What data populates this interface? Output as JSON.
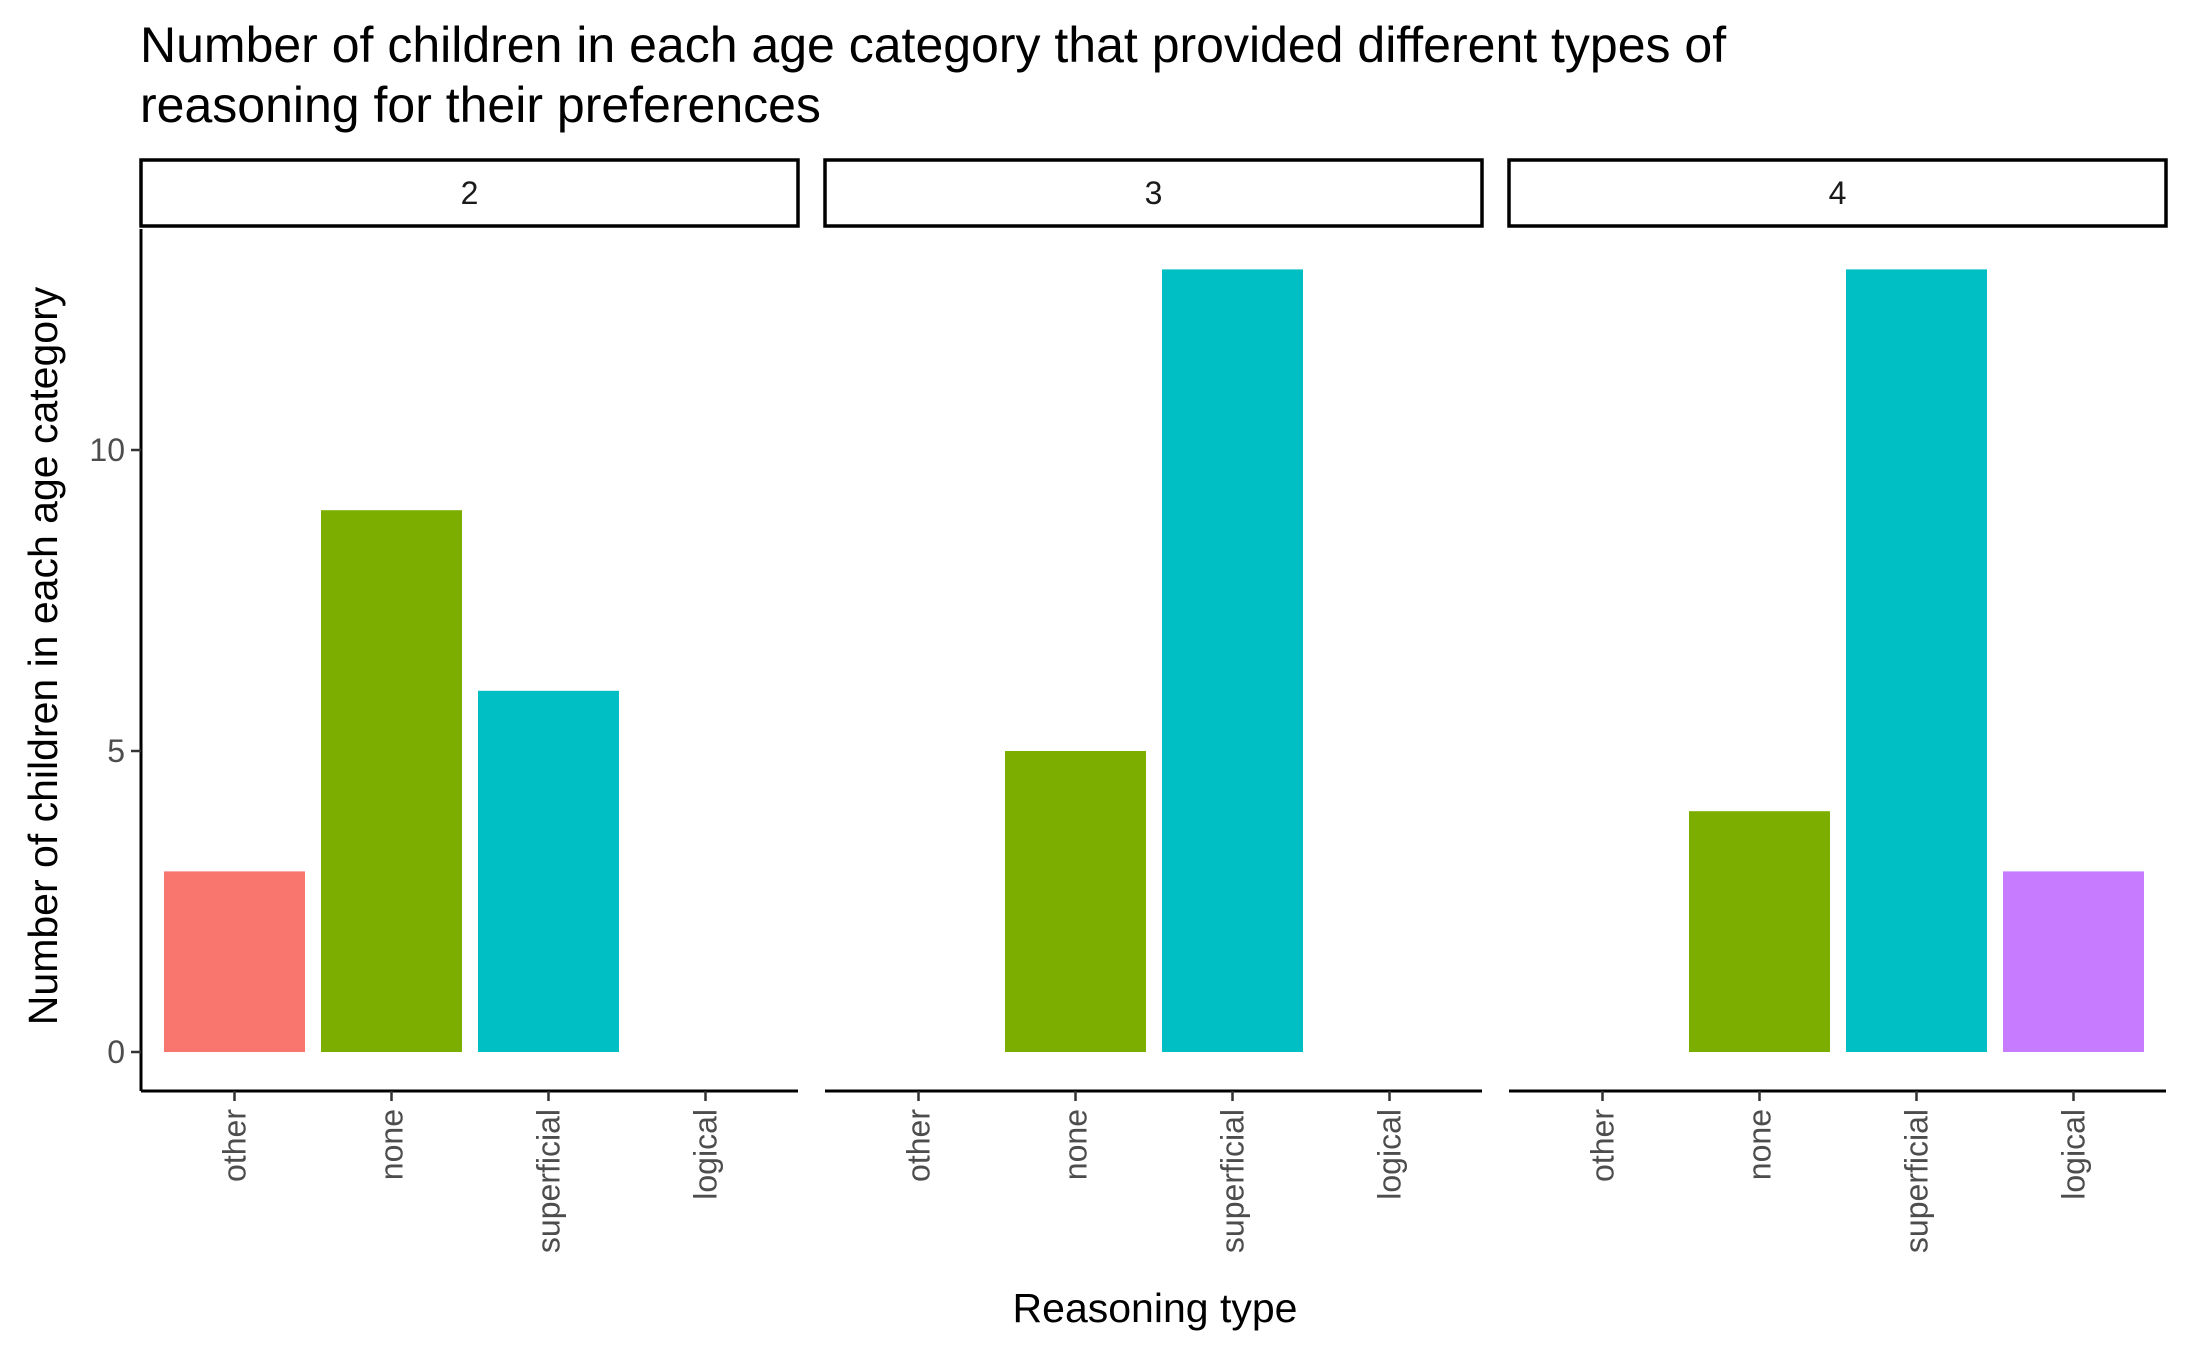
{
  "chart_data": {
    "type": "bar",
    "title_lines": [
      "Number of children in each age category that provided different types of",
      "reasoning for their preferences"
    ],
    "xlabel": "Reasoning type",
    "ylabel": "Number of children in each age category",
    "categories": [
      "other",
      "none",
      "superficial",
      "logical"
    ],
    "category_colors": {
      "other": "#F8766D",
      "none": "#7CAE00",
      "superficial": "#00BFC4",
      "logical": "#C77CFF"
    },
    "facet_variable": "age",
    "yticks": [
      0,
      5,
      10
    ],
    "ylim": [
      0,
      13.65
    ],
    "grid": false,
    "legend": "none",
    "facets": [
      {
        "label": "2",
        "values": [
          3,
          9,
          6,
          0
        ]
      },
      {
        "label": "3",
        "values": [
          0,
          5,
          13,
          0
        ]
      },
      {
        "label": "4",
        "values": [
          0,
          4,
          13,
          3
        ]
      }
    ]
  }
}
